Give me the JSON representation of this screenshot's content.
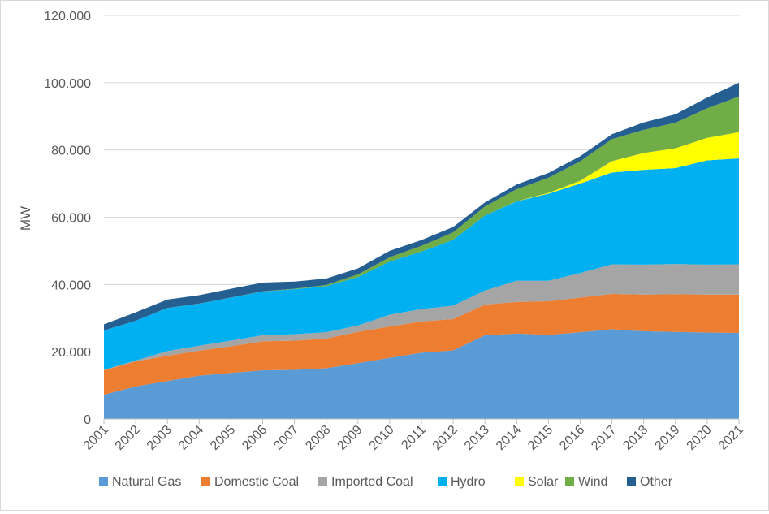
{
  "chart_data": {
    "type": "area",
    "stacked": true,
    "title": "",
    "xlabel": "",
    "ylabel": "MW",
    "ylim": [
      0,
      120000
    ],
    "yticks": [
      0,
      20000,
      40000,
      60000,
      80000,
      100000,
      120000
    ],
    "ytick_labels": [
      "0",
      "20.000",
      "40.000",
      "60.000",
      "80.000",
      "100.000",
      "120.000"
    ],
    "grid": "horizontal",
    "legend_position": "bottom",
    "categories": [
      "2001",
      "2002",
      "2003",
      "2004",
      "2005",
      "2006",
      "2007",
      "2008",
      "2009",
      "2010",
      "2011",
      "2012",
      "2013",
      "2014",
      "2015",
      "2016",
      "2017",
      "2018",
      "2019",
      "2020",
      "2021"
    ],
    "series": [
      {
        "name": "Natural Gas",
        "color": "#5b9bd5",
        "values": [
          7200,
          9700,
          11300,
          12900,
          13700,
          14500,
          14600,
          15100,
          16600,
          18200,
          19700,
          20400,
          24900,
          25400,
          25000,
          25800,
          26700,
          26100,
          25900,
          25700,
          25600
        ]
      },
      {
        "name": "Domestic Coal",
        "color": "#ed7d31",
        "values": [
          7300,
          7400,
          7500,
          7400,
          7900,
          8600,
          8700,
          8800,
          9300,
          9300,
          9300,
          9300,
          9100,
          9400,
          10000,
          10300,
          10500,
          10900,
          11200,
          11300,
          11400
        ]
      },
      {
        "name": "Imported Coal",
        "color": "#a5a5a5",
        "values": [
          100,
          300,
          1400,
          1500,
          1700,
          1800,
          1900,
          1900,
          1900,
          3500,
          3700,
          4000,
          4200,
          6300,
          6100,
          7300,
          8800,
          8900,
          9000,
          8900,
          9000
        ]
      },
      {
        "name": "Hydro",
        "color": "#00b0f0",
        "values": [
          11700,
          11800,
          12800,
          12500,
          12800,
          13000,
          13400,
          13700,
          14400,
          15800,
          17100,
          19600,
          22300,
          23600,
          25900,
          26600,
          27300,
          28200,
          28500,
          31000,
          31500
        ]
      },
      {
        "name": "Solar",
        "color": "#ffff00",
        "values": [
          0,
          0,
          0,
          0,
          0,
          0,
          0,
          0,
          0,
          0,
          0,
          0,
          0,
          40,
          250,
          830,
          3400,
          5000,
          5900,
          6700,
          7800
        ]
      },
      {
        "name": "Wind",
        "color": "#70ad47",
        "values": [
          20,
          20,
          20,
          20,
          20,
          60,
          150,
          360,
          800,
          1300,
          1700,
          2200,
          2700,
          3600,
          4500,
          5800,
          6500,
          6900,
          7600,
          8800,
          10600
        ]
      },
      {
        "name": "Other",
        "color": "#255e91",
        "values": [
          1800,
          2500,
          2500,
          2500,
          2600,
          2600,
          2100,
          1900,
          1800,
          1900,
          1700,
          1600,
          1200,
          1400,
          1400,
          1500,
          1500,
          2200,
          2500,
          3200,
          4100
        ]
      }
    ]
  }
}
